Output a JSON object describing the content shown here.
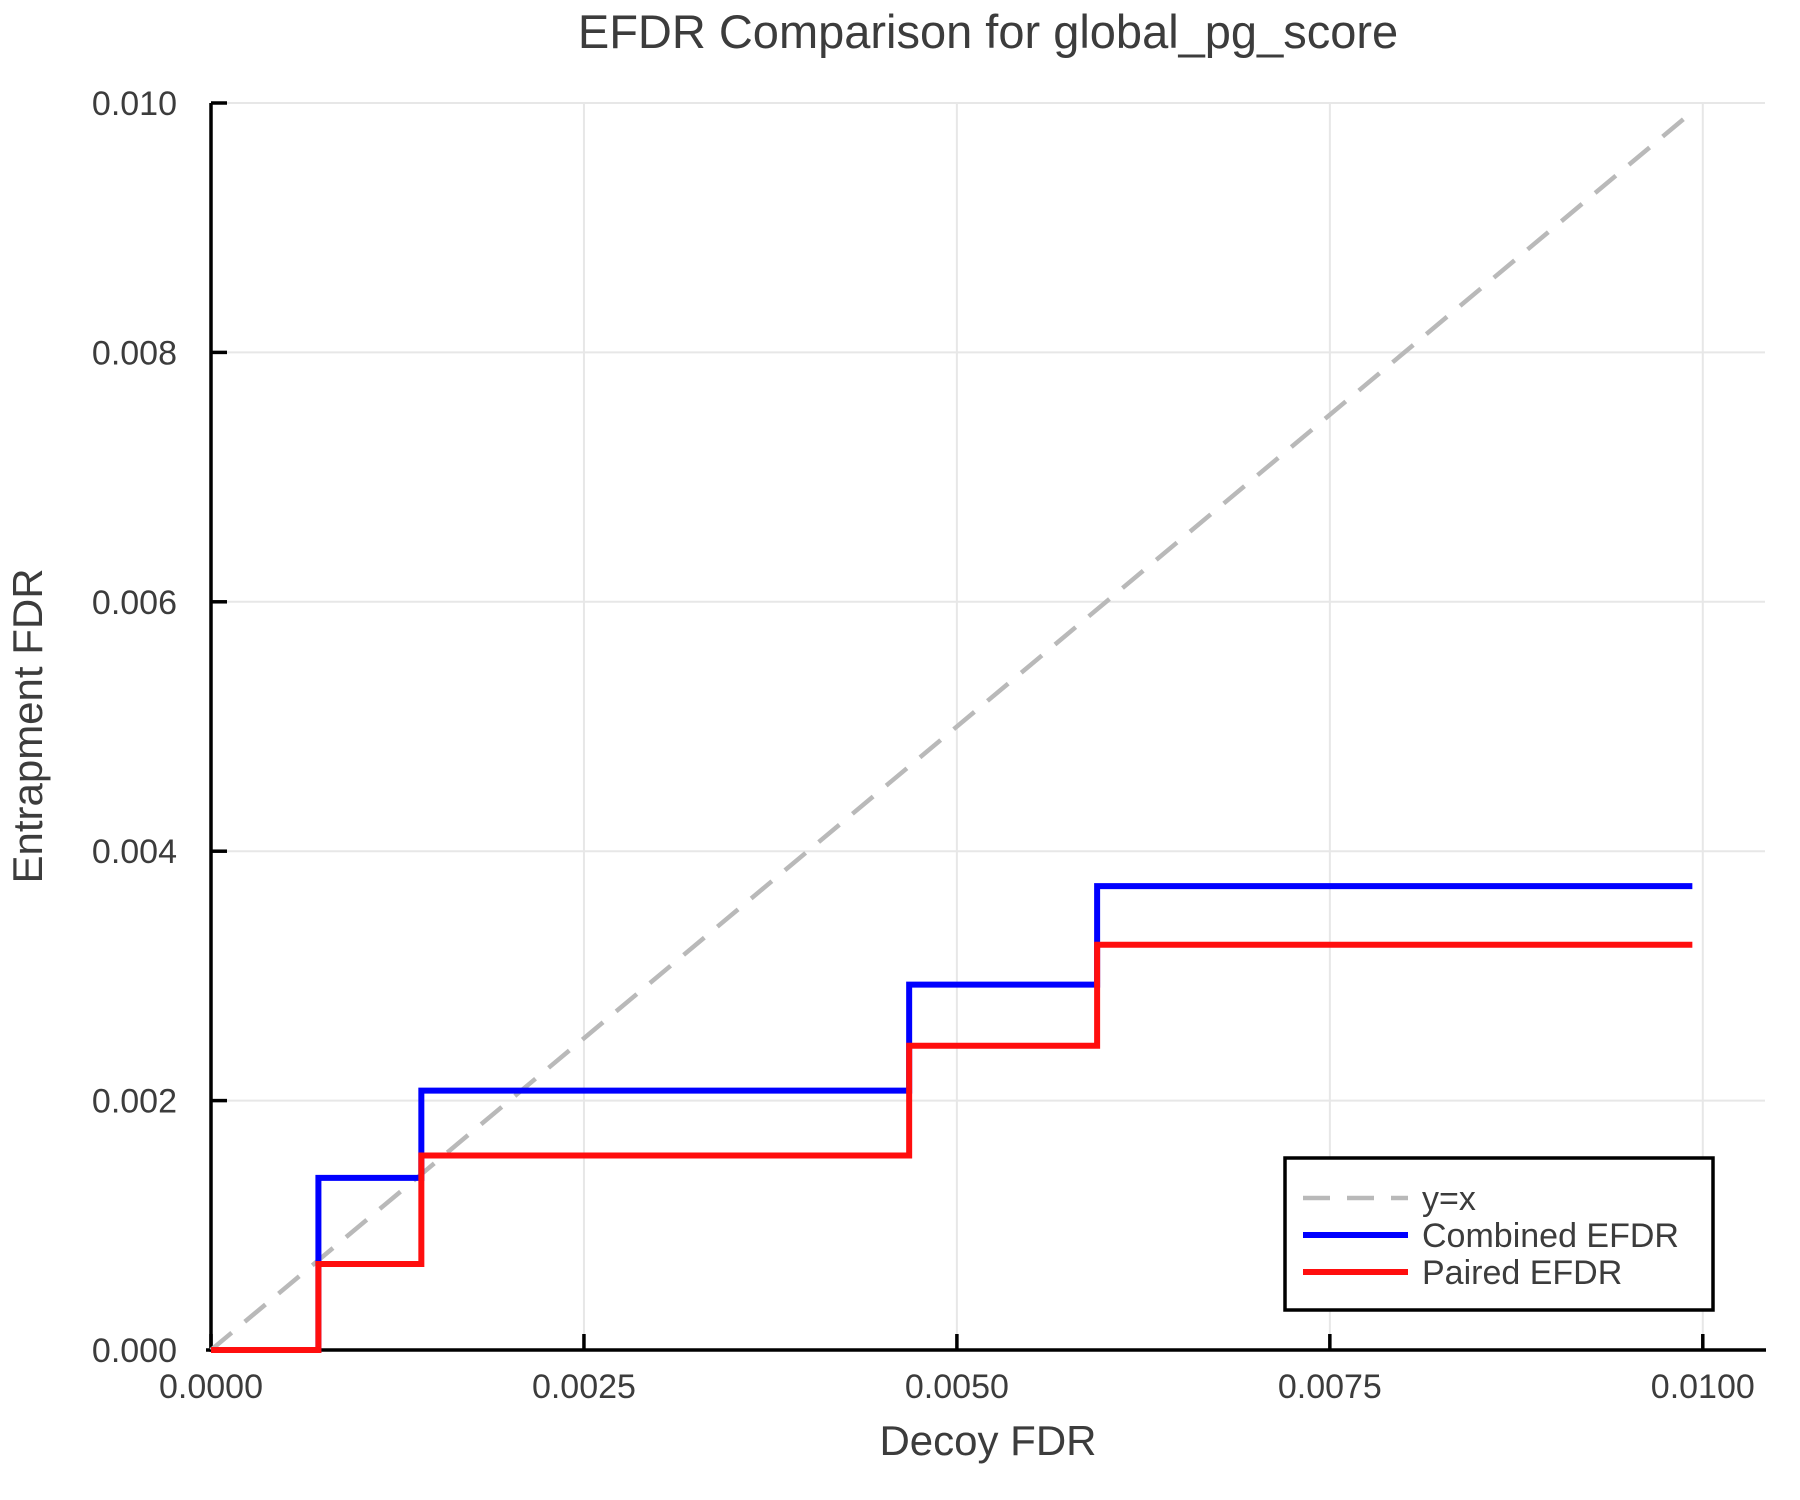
{
  "figure": {
    "title": "EFDR Comparison for global_pg_score",
    "xlabel": "Decoy FDR",
    "ylabel": "Entrapment FDR"
  },
  "colors": {
    "combined": "#0000ff",
    "paired": "#ff0e0e",
    "identity": "#b9b9b9",
    "grid": "#e7e7e7",
    "spine": "#000000",
    "text": "#3c3c3c",
    "legend_border": "#000000",
    "legend_bg": "#ffffff"
  },
  "chart_data": {
    "type": "line",
    "title": "EFDR Comparison for global_pg_score",
    "xlabel": "Decoy FDR",
    "ylabel": "Entrapment FDR",
    "xlim": [
      0,
      0.010417
    ],
    "ylim": [
      0,
      0.01
    ],
    "grid": true,
    "x_ticks": [
      0,
      0.0025,
      0.005,
      0.0075,
      0.01
    ],
    "x_tick_labels": [
      "0.0000",
      "0.0025",
      "0.0050",
      "0.0075",
      "0.0100"
    ],
    "y_ticks": [
      0,
      0.002,
      0.004,
      0.006,
      0.008,
      0.01
    ],
    "y_tick_labels": [
      "0.000",
      "0.002",
      "0.004",
      "0.006",
      "0.008",
      "0.010"
    ],
    "legend": {
      "position": "lower right",
      "entries": [
        {
          "label": "y=x",
          "color": "#b9b9b9",
          "linestyle": "dashed",
          "linewidth": 4.5
        },
        {
          "label": "Combined EFDR",
          "color": "#0000ff",
          "linestyle": "solid",
          "linewidth": 6
        },
        {
          "label": "Paired EFDR",
          "color": "#ff0e0e",
          "linestyle": "solid",
          "linewidth": 6
        }
      ]
    },
    "series": [
      {
        "name": "y=x",
        "color": "#b9b9b9",
        "linestyle": "dashed",
        "linewidth": 4.5,
        "x": [
          0,
          0.00995
        ],
        "y": [
          0,
          0.00995
        ]
      },
      {
        "name": "Combined EFDR",
        "color": "#0000ff",
        "linestyle": "solid",
        "linewidth": 6,
        "step_x": [
          0.00072,
          0.00141,
          0.00468,
          0.00594
        ],
        "step_levels": [
          0.00138,
          0.00208,
          0.00293,
          0.00372
        ],
        "x": [
          0,
          0.00072,
          0.00072,
          0.00141,
          0.00141,
          0.00468,
          0.00468,
          0.00594,
          0.00594,
          0.00993
        ],
        "y": [
          0,
          0,
          0.00138,
          0.00138,
          0.00208,
          0.00208,
          0.00293,
          0.00293,
          0.00372,
          0.00372
        ]
      },
      {
        "name": "Paired EFDR",
        "color": "#ff0e0e",
        "linestyle": "solid",
        "linewidth": 6,
        "step_x": [
          0.00072,
          0.00141,
          0.00468,
          0.00594
        ],
        "step_levels": [
          0.00069,
          0.00156,
          0.00244,
          0.00325
        ],
        "x": [
          0,
          0.00072,
          0.00072,
          0.00141,
          0.00141,
          0.00468,
          0.00468,
          0.00594,
          0.00594,
          0.00993
        ],
        "y": [
          0,
          0,
          0.00069,
          0.00069,
          0.00156,
          0.00156,
          0.00244,
          0.00244,
          0.00325,
          0.00325
        ]
      }
    ]
  }
}
